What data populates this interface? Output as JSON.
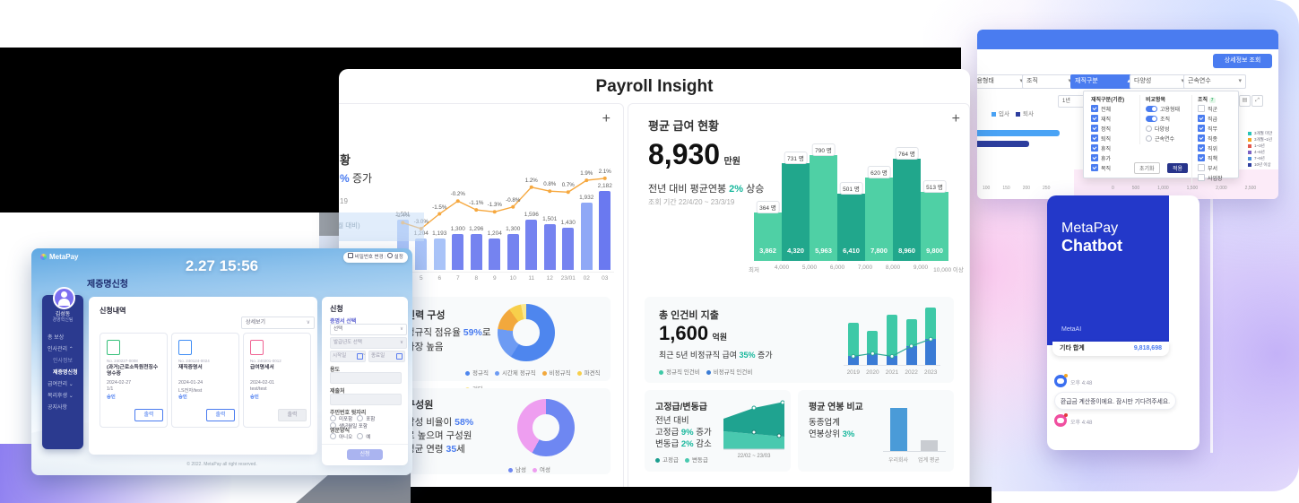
{
  "payroll": {
    "window_title": "Payroll Insight",
    "plus_icon": "+",
    "left_panel": {
      "title_fragment": "황",
      "subtitle_pct_fragment": "%",
      "subtitle_fragment": " 증가",
      "period_fragment": "19",
      "note_fragment": "(전년 동월 대비)",
      "combo_chart": {
        "type": "bar+line",
        "categories": [
          "4",
          "5",
          "6",
          "7",
          "8",
          "9",
          "10",
          "11",
          "12",
          "23/01",
          "02",
          "03"
        ],
        "bar_values": [
          1591,
          1204,
          1193,
          1300,
          1296,
          1204,
          1300,
          1596,
          1501,
          1430,
          1932,
          2182
        ],
        "bar_labels": [
          "1,591",
          "1,204",
          "1,193",
          "1,300",
          "1,296",
          "1,204",
          "1,300",
          "1,596",
          "1,501",
          "1,430",
          "1,932",
          "2,182"
        ],
        "line_values_pct": [
          -2.4,
          -3.0,
          -1.5,
          -0.2,
          -1.1,
          -1.3,
          -0.8,
          1.2,
          0.8,
          0.7,
          1.9,
          2.1
        ],
        "line_labels": [
          "-2.4%",
          "-3.0%",
          "-1.5%",
          "-0.2%",
          "-1.1%",
          "-1.3%",
          "-0.8%",
          "1.2%",
          "0.8%",
          "0.7%",
          "1.9%",
          "2.1%"
        ],
        "bar_colors": [
          "#a9c3f8",
          "#a9c3f8",
          "#a9c3f8",
          "#7583f0",
          "#7583f0",
          "#7583f0",
          "#7583f0",
          "#7583f0",
          "#7583f0",
          "#7583f0",
          "#8fa8f6",
          "#6a79f0"
        ],
        "line_color": "#f6a83f"
      },
      "workforce_card": {
        "title": "인력 구성",
        "line1_pre": "정규직 점유율 ",
        "line1_pct": "59%",
        "line1_post": "로",
        "line2": "가장 높음",
        "donut": [
          {
            "label": "정규직",
            "pct": 59,
            "color": "#4e86ee"
          },
          {
            "label": "시간제 정규직",
            "pct": 18,
            "color": "#6d9bf3"
          },
          {
            "label": "비정규직",
            "pct": 13,
            "color": "#f2a83c"
          },
          {
            "label": "파견직",
            "pct": 7,
            "color": "#f7cf4b"
          },
          {
            "label": "기타",
            "pct": 3,
            "color": "#fbe88f"
          }
        ]
      },
      "members_card": {
        "title": "구성원",
        "line1_pre": "남성 비율이 ",
        "line1_pct": "58%",
        "line2": "로 높으며 구성원",
        "line3_pre": "평균 연령 ",
        "line3_num": "35",
        "line3_post": "세",
        "donut": [
          {
            "label": "남성",
            "pct": 58,
            "color": "#6e87f2"
          },
          {
            "label": "여성",
            "pct": 42,
            "color": "#ee9ef0"
          }
        ]
      }
    },
    "right_panel": {
      "title": "평균 급여 현황",
      "big_value": "8,930",
      "big_unit": "만원",
      "subtitle_pre": "전년 대비 평균연봉 ",
      "subtitle_pct": "2%",
      "subtitle_post": " 상승",
      "period": "조회 기간 22/4/20 ~ 23/3/19",
      "salary_histogram": {
        "type": "bar",
        "counts": [
          "364 명",
          "731 명",
          "790 명",
          "501 명",
          "620 명",
          "764 명",
          "513 명"
        ],
        "count_values": [
          364,
          731,
          790,
          501,
          620,
          764,
          513
        ],
        "values": [
          "3,862",
          "4,320",
          "5,963",
          "6,410",
          "7,800",
          "8,960",
          "9,800"
        ],
        "boundaries": [
          "최저",
          "4,000",
          "5,000",
          "6,000",
          "7,000",
          "8,000",
          "9,000",
          "10,000 이상"
        ],
        "colors": [
          "#4fd0a5",
          "#21a78c",
          "#4fd0a5",
          "#21a78c",
          "#4fd0a5",
          "#21a78c",
          "#4fd0a5"
        ]
      },
      "labor_cost_card": {
        "title": "총 인건비 지출",
        "big_value": "1,600",
        "big_unit": "억원",
        "sub_pre": "최근 5년 비정규직 급여 ",
        "sub_pct": "35%",
        "sub_post": " 증가",
        "legend": [
          {
            "label": "정규직 인건비",
            "color": "#3ec9a7"
          },
          {
            "label": "비정규직 인건비",
            "color": "#3a7bd5"
          }
        ],
        "chart": {
          "type": "stacked-bar+line",
          "years": [
            "2019",
            "2020",
            "2021",
            "2022",
            "2023"
          ],
          "total_rel": [
            0.73,
            0.6,
            0.87,
            0.8,
            1.0
          ],
          "lower_rel": [
            0.15,
            0.2,
            0.15,
            0.33,
            0.45
          ]
        }
      },
      "fixed_var_card": {
        "title": "고정급/변동급",
        "line1": "전년 대비",
        "line2_pre": "고정급 ",
        "line2_pct": "9%",
        "line2_post": " 증가",
        "line3_pre": "변동급 ",
        "line3_pct": "2%",
        "line3_post": " 감소",
        "legend": [
          {
            "label": "고정급",
            "color": "#1b9e8f"
          },
          {
            "label": "변동급",
            "color": "#49c9af"
          }
        ],
        "axis": "22/02 ~ 23/03"
      },
      "compare_card": {
        "title": "평균 연봉 비교",
        "line1": "동종업계",
        "line2_pre": "연봉상위 ",
        "line2_pct": "3%",
        "chart": {
          "type": "bar",
          "categories": [
            "우리회사",
            "업계 평균"
          ],
          "rel_heights": [
            0.86,
            0.21
          ],
          "colors": [
            "#4a9bd8",
            "#c9ccd1"
          ]
        }
      }
    }
  },
  "app": {
    "brand": "MetaPay",
    "password_button": "비밀번호 변경",
    "settings_button": "설정",
    "clock": "2.27 15:56",
    "page_title": "제증명신청",
    "sidebar": {
      "name": "김성동",
      "team": "경영혁신팀",
      "items": [
        {
          "label": "총 보상",
          "chevron": "",
          "sub": false,
          "active": false
        },
        {
          "label": "인사관리",
          "chevron": "⌃",
          "sub": false,
          "active": false
        },
        {
          "label": "인사정보",
          "chevron": "",
          "sub": true,
          "active": false
        },
        {
          "label": "제증명신청",
          "chevron": "",
          "sub": true,
          "active": true
        },
        {
          "label": "급여관리",
          "chevron": "⌄",
          "sub": false,
          "active": false
        },
        {
          "label": "복리후생",
          "chevron": "⌄",
          "sub": false,
          "active": false
        },
        {
          "label": "공지사항",
          "chevron": "",
          "sub": false,
          "active": false
        }
      ]
    },
    "history": {
      "title": "신청내역",
      "filter_value": "상세보기",
      "print_label": "출력",
      "cards": [
        {
          "no": "No. 240227-0008",
          "name": "(과거)근로소득원천징수영수증",
          "date": "2024-02-27",
          "sub": "1/1",
          "status": "승인",
          "icon_color": "#35c07a",
          "disabled": false
        },
        {
          "no": "No. 240124-0024",
          "name": "재직증명서",
          "date": "2024-01-24",
          "sub": "LS전자/test",
          "status": "승인",
          "icon_color": "#3f8df5",
          "disabled": false
        },
        {
          "no": "No. 240201-0012",
          "name": "급여명세서",
          "date": "2024-02-01",
          "sub": "test/test",
          "status": "승인",
          "icon_color": "#f06292",
          "disabled": true
        }
      ]
    },
    "form": {
      "title": "신청",
      "cert_label": "증명서 선택",
      "cert_placeholder": "선택",
      "year_placeholder": "발급년도 선택",
      "start_placeholder": "시작일",
      "end_placeholder": "종료일",
      "usage_label": "용도",
      "submit_to_label": "제출처",
      "rrn_label": "주민번호 뒷자리",
      "rrn_options": [
        "미포함",
        "포함",
        "생년월일 포함"
      ],
      "eng_label": "영문양식",
      "eng_options": [
        "아니오",
        "예"
      ],
      "submit_label": "신청"
    },
    "footer": "© 2022. MetaPay all right reserved."
  },
  "filter_window": {
    "detail_button": "상세정보 조회",
    "filters": [
      {
        "label": "고용형태",
        "active": false
      },
      {
        "label": "조직",
        "active": false
      },
      {
        "label": "재직구분",
        "active": true
      },
      {
        "label": "다양성",
        "active": false
      },
      {
        "label": "근속연수",
        "active": false
      }
    ],
    "period_select": "1년",
    "legend_top": [
      {
        "label": "입사",
        "color": "#4aa3f5"
      },
      {
        "label": "퇴사",
        "color": "#2d3e9e"
      }
    ],
    "dropdown": {
      "col1_title": "재직구분(기준)",
      "col1": [
        {
          "label": "전체",
          "checked": true
        },
        {
          "label": "재직",
          "checked": true
        },
        {
          "label": "정직",
          "checked": true
        },
        {
          "label": "퇴직",
          "checked": true
        },
        {
          "label": "휴직",
          "checked": true
        },
        {
          "label": "휴가",
          "checked": true
        },
        {
          "label": "복직",
          "checked": true
        }
      ],
      "col2_title": "비교항목",
      "toggles": [
        "고용형태",
        "조직"
      ],
      "radios": [
        "다양성",
        "근속연수"
      ],
      "col3_title": "조직",
      "col3_badge": "7",
      "col3": [
        {
          "label": "직군",
          "checked": false
        },
        {
          "label": "직급",
          "checked": true
        },
        {
          "label": "직무",
          "checked": true
        },
        {
          "label": "직종",
          "checked": true
        },
        {
          "label": "직위",
          "checked": true
        },
        {
          "label": "직책",
          "checked": true
        },
        {
          "label": "부서",
          "checked": false
        },
        {
          "label": "사업장",
          "checked": false
        }
      ],
      "reset_label": "초기화",
      "apply_label": "적용"
    },
    "legend_right": [
      {
        "label": "3개월 미만",
        "color": "#2bc4b8"
      },
      {
        "label": "3개월~1년",
        "color": "#f5a623"
      },
      {
        "label": "1~3년",
        "color": "#e2574c"
      },
      {
        "label": "4~6년",
        "color": "#7b61c4"
      },
      {
        "label": "7~9년",
        "color": "#4a90d9"
      },
      {
        "label": "10년 이상",
        "color": "#2d3e9e"
      }
    ],
    "axis_left": [
      "100",
      "150",
      "200",
      "250"
    ],
    "axis_right": [
      "0",
      "500",
      "1,000",
      "1,500",
      "2,000",
      "2,500"
    ],
    "small_note": "퇴직(금전적)"
  },
  "chatbot": {
    "brand_light": "MetaPay",
    "brand_bold": "Chatbot",
    "meta_ai": "MetaAI",
    "summary_label": "기타 합계",
    "summary_value": "9,818,698",
    "msg1_time": "오후 4:48",
    "bot_message": "환급금 계산중이에요. 잠시만 기다려주세요.",
    "msg2_time": "오후 4:48"
  },
  "background": {
    "tenure_label_1": "7~9",
    "tenure_label_2": "10년이상"
  }
}
